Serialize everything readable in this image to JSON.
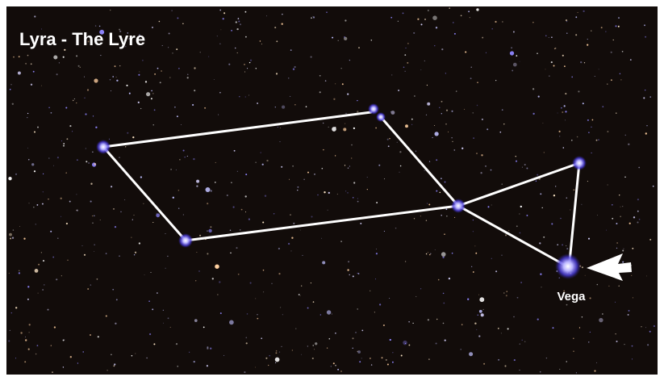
{
  "title": "Lyra - The Lyre",
  "labels": {
    "vega": "Vega"
  }
}
